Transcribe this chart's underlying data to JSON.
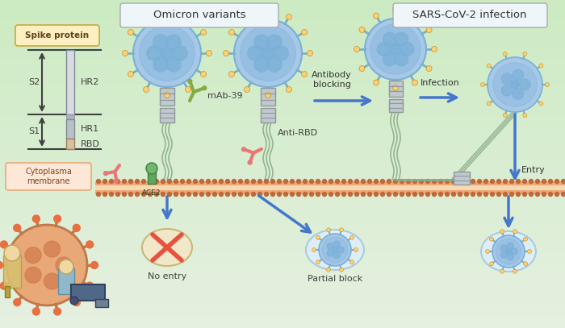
{
  "title_omicron": "Omicron variants",
  "title_sars": "SARS-CoV-2 infection",
  "labels": {
    "spike_protein_label": "Spike protein",
    "S2": "S2",
    "S1": "S1",
    "HR2": "HR2",
    "HR1": "HR1",
    "RBD": "RBD",
    "mab39": "mAb-39",
    "anti_rbd": "Anti-RBD",
    "antibody_blocking": "Antibody\nblocking",
    "infection": "Infection",
    "cytoplasm": "Cytoplasma\nmembrane",
    "ace2": "ACE2",
    "no_entry": "No entry",
    "partial_block": "Partial block",
    "entry": "Entry"
  },
  "colors": {
    "virus_body": "#a8c8e8",
    "virus_body_dark": "#7ab0d8",
    "virus_spike_outer": "#ffd070",
    "hr_color": "#c0c8d0",
    "hr_border": "#909898",
    "stem_color": "#88aa88",
    "mab_color": "#88aa44",
    "antirbd_color": "#e87878",
    "arrow_blue": "#4477cc",
    "membrane_outer": "#e8a878",
    "membrane_inner": "#f8d8b0",
    "membrane_dots": "#c06838",
    "ace2_color": "#60a860",
    "blocked_ellipse": "#f0e8c8",
    "blocked_cross": "#e85040",
    "entry_ellipse": "#ddeef8",
    "box_spike_fc": "#fdf0c0",
    "box_spike_ec": "#c8a840",
    "box_cytoplasm_fc": "#fde8d8",
    "box_cytoplasm_ec": "#e8a878",
    "box_title_fc": "#eef6fa",
    "box_title_ec": "#aaaaaa",
    "text_dark": "#404040",
    "text_medium": "#333333",
    "big_virus": "#e8a878",
    "big_virus_ec": "#c07848",
    "big_virus_spike": "#e87040"
  }
}
